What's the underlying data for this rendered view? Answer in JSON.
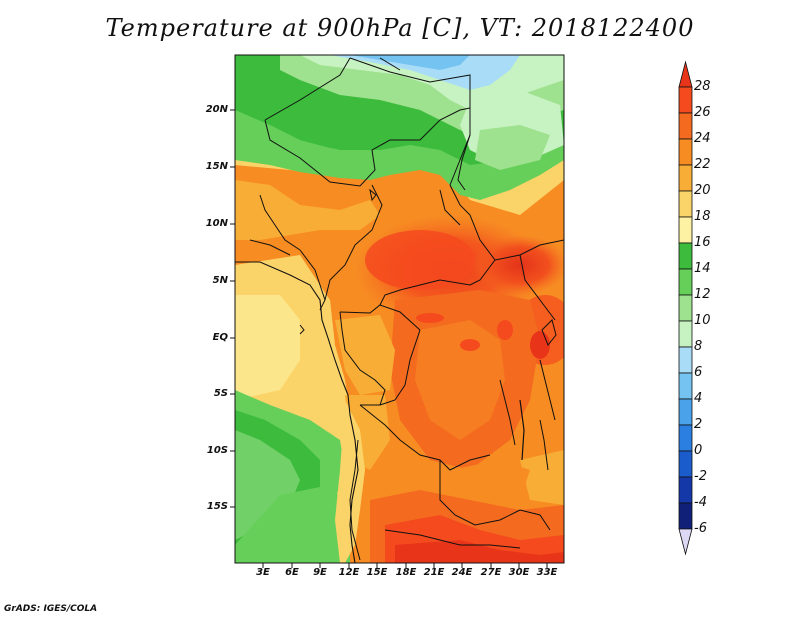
{
  "title": "Temperature at 900hPa [C], VT: 2018122400",
  "credit": "GrADS: IGES/COLA",
  "map": {
    "region": "Central Africa",
    "y_ticks": [
      "20N",
      "15N",
      "10N",
      "5N",
      "EQ",
      "5S",
      "10S",
      "15S"
    ],
    "x_ticks": [
      "3E",
      "6E",
      "9E",
      "12E",
      "15E",
      "18E",
      "21E",
      "24E",
      "27E",
      "30E",
      "33E"
    ]
  },
  "colorbar": {
    "labels": [
      "28",
      "26",
      "24",
      "22",
      "20",
      "18",
      "16",
      "14",
      "12",
      "10",
      "8",
      "6",
      "4",
      "2",
      "0",
      "-2",
      "-4",
      "-6"
    ],
    "colors": {
      "above_28": "#e8351a",
      "c26_28": "#f44a1e",
      "c24_26": "#f46b20",
      "c22_24": "#f78c22",
      "c20_22": "#f8ae36",
      "c18_20": "#fbd469",
      "c16_18": "#fdf1a3",
      "c14_16": "#3dbb3d",
      "c12_14": "#66cf5a",
      "c10_12": "#9ee18e",
      "c8_10": "#c7f2c2",
      "c6_8": "#a9dcf7",
      "c4_6": "#74c3f0",
      "c2_4": "#4aa3ea",
      "c0_2": "#2a7fe0",
      "cm2_0": "#1a5ccc",
      "cm4_m2": "#1538a8",
      "cm6_m4": "#101f78",
      "below_m6": "#ddd9f5"
    }
  },
  "chart_data": {
    "type": "heatmap",
    "title": "Temperature at 900hPa [C], VT: 2018122400",
    "variable": "Temperature at 900hPa",
    "units": "C",
    "valid_time": "2018122400",
    "x_axis": {
      "label": "longitude",
      "ticks": [
        "3E",
        "6E",
        "9E",
        "12E",
        "15E",
        "18E",
        "21E",
        "24E",
        "27E",
        "30E",
        "33E"
      ]
    },
    "y_axis": {
      "label": "latitude",
      "ticks": [
        "20N",
        "15N",
        "10N",
        "5N",
        "EQ",
        "5S",
        "10S",
        "15S"
      ]
    },
    "colorbar_levels": [
      -6,
      -4,
      -2,
      0,
      2,
      4,
      6,
      8,
      10,
      12,
      14,
      16,
      18,
      20,
      22,
      24,
      26,
      28
    ],
    "observed_ranges": [
      {
        "area": "northern Sahara (top)",
        "value_c": "6-14"
      },
      {
        "area": "Sahel band 10N-15N",
        "value_c": "16-20"
      },
      {
        "area": "Central African Republic / South Sudan",
        "value_c": "24-28"
      },
      {
        "area": "Congo basin interior",
        "value_c": "22-26"
      },
      {
        "area": "Gulf of Guinea / Atlantic offshore",
        "value_c": "18-20"
      },
      {
        "area": "South Atlantic 5S-15S",
        "value_c": "12-16"
      },
      {
        "area": "Angola / Zambia south",
        "value_c": "22-28"
      }
    ]
  }
}
